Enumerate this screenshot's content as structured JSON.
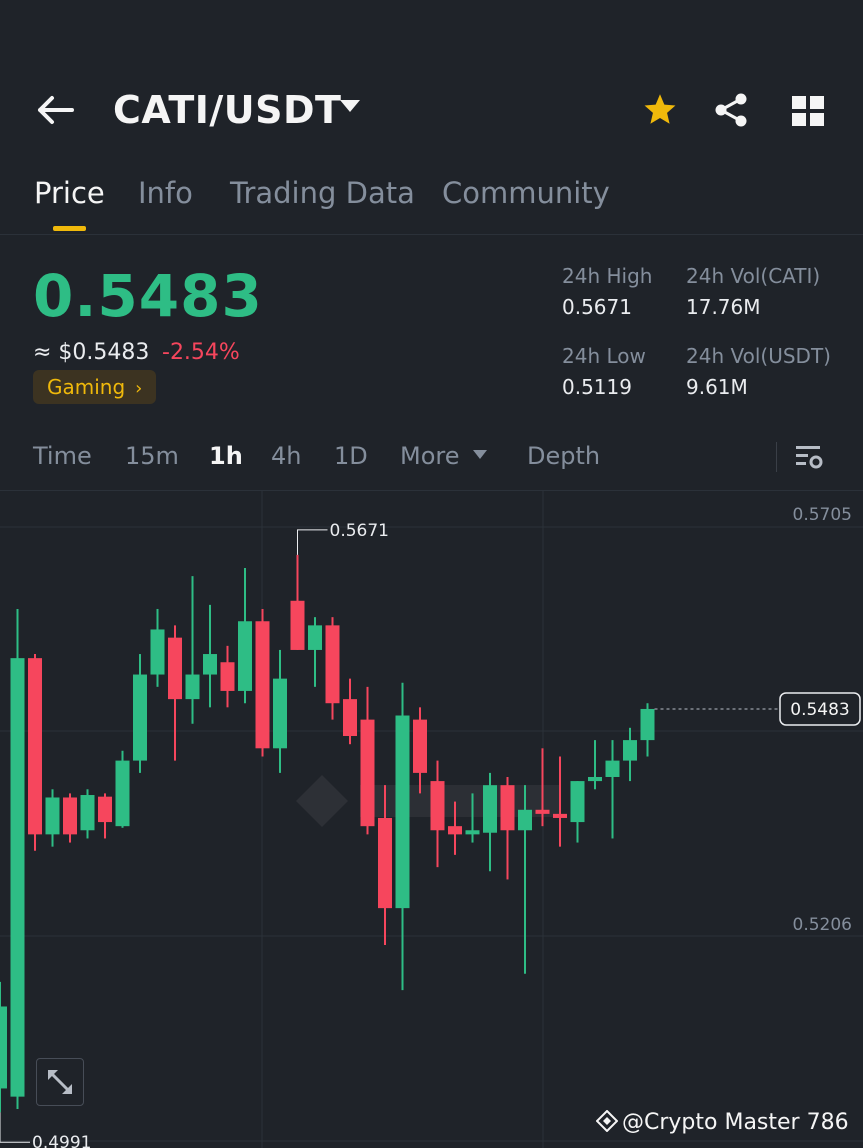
{
  "header": {
    "pair": "CATI/USDT"
  },
  "tabs": [
    "Price",
    "Info",
    "Trading Data",
    "Community"
  ],
  "ticker": {
    "last_price": "0.5483",
    "usd_price": "≈ $0.5483",
    "change": "-2.54%",
    "tag": "Gaming",
    "tag_chevron": "›",
    "high_label": "24h High",
    "high_value": "0.5671",
    "low_label": "24h Low",
    "low_value": "0.5119",
    "vol_base_label": "24h Vol(CATI)",
    "vol_base_value": "17.76M",
    "vol_quote_label": "24h Vol(USDT)",
    "vol_quote_value": "9.61M"
  },
  "intervals": {
    "time": "Time",
    "m15": "15m",
    "h1": "1h",
    "h4": "4h",
    "d1": "1D",
    "more": "More",
    "depth": "Depth"
  },
  "chart_data": {
    "type": "candlestick",
    "y_axis_ticks": [
      "0.5705",
      "0.5206"
    ],
    "last_price_label": "0.5483",
    "high_marker": "0.5671",
    "low_marker": "0.4991",
    "up_color": "#2ebd85",
    "down_color": "#f6465d",
    "candles": [
      {
        "o": 0.502,
        "h": 0.515,
        "l": 0.4991,
        "c": 0.512
      },
      {
        "o": 0.501,
        "h": 0.5605,
        "l": 0.4995,
        "c": 0.5545
      },
      {
        "o": 0.5545,
        "h": 0.555,
        "l": 0.531,
        "c": 0.533
      },
      {
        "o": 0.533,
        "h": 0.5385,
        "l": 0.5315,
        "c": 0.5375
      },
      {
        "o": 0.5375,
        "h": 0.538,
        "l": 0.532,
        "c": 0.533
      },
      {
        "o": 0.5335,
        "h": 0.5385,
        "l": 0.5325,
        "c": 0.5378
      },
      {
        "o": 0.5376,
        "h": 0.538,
        "l": 0.5325,
        "c": 0.5345
      },
      {
        "o": 0.534,
        "h": 0.5432,
        "l": 0.5338,
        "c": 0.542
      },
      {
        "o": 0.542,
        "h": 0.555,
        "l": 0.5405,
        "c": 0.5525
      },
      {
        "o": 0.5525,
        "h": 0.5605,
        "l": 0.551,
        "c": 0.558
      },
      {
        "o": 0.557,
        "h": 0.5585,
        "l": 0.542,
        "c": 0.5495
      },
      {
        "o": 0.5495,
        "h": 0.5645,
        "l": 0.5465,
        "c": 0.5525
      },
      {
        "o": 0.5525,
        "h": 0.561,
        "l": 0.5485,
        "c": 0.555
      },
      {
        "o": 0.554,
        "h": 0.556,
        "l": 0.5485,
        "c": 0.5505
      },
      {
        "o": 0.5505,
        "h": 0.5655,
        "l": 0.549,
        "c": 0.559
      },
      {
        "o": 0.559,
        "h": 0.5605,
        "l": 0.5425,
        "c": 0.5435
      },
      {
        "o": 0.5435,
        "h": 0.5555,
        "l": 0.5405,
        "c": 0.552
      },
      {
        "o": 0.5615,
        "h": 0.5671,
        "l": 0.5555,
        "c": 0.5555
      },
      {
        "o": 0.5555,
        "h": 0.5595,
        "l": 0.551,
        "c": 0.5585
      },
      {
        "o": 0.5585,
        "h": 0.5595,
        "l": 0.547,
        "c": 0.549
      },
      {
        "o": 0.5495,
        "h": 0.552,
        "l": 0.544,
        "c": 0.545
      },
      {
        "o": 0.547,
        "h": 0.551,
        "l": 0.533,
        "c": 0.534
      },
      {
        "o": 0.535,
        "h": 0.539,
        "l": 0.5195,
        "c": 0.524
      },
      {
        "o": 0.524,
        "h": 0.5515,
        "l": 0.514,
        "c": 0.5475
      },
      {
        "o": 0.547,
        "h": 0.5485,
        "l": 0.538,
        "c": 0.5405
      },
      {
        "o": 0.5395,
        "h": 0.542,
        "l": 0.529,
        "c": 0.5335
      },
      {
        "o": 0.534,
        "h": 0.537,
        "l": 0.5305,
        "c": 0.533
      },
      {
        "o": 0.533,
        "h": 0.538,
        "l": 0.532,
        "c": 0.5335
      },
      {
        "o": 0.5332,
        "h": 0.5405,
        "l": 0.5285,
        "c": 0.539
      },
      {
        "o": 0.539,
        "h": 0.54,
        "l": 0.5275,
        "c": 0.5335
      },
      {
        "o": 0.5335,
        "h": 0.539,
        "l": 0.516,
        "c": 0.536
      },
      {
        "o": 0.536,
        "h": 0.5435,
        "l": 0.534,
        "c": 0.5355
      },
      {
        "o": 0.5355,
        "h": 0.5425,
        "l": 0.5315,
        "c": 0.535
      },
      {
        "o": 0.5345,
        "h": 0.5395,
        "l": 0.532,
        "c": 0.5395
      },
      {
        "o": 0.5395,
        "h": 0.5445,
        "l": 0.5385,
        "c": 0.54
      },
      {
        "o": 0.54,
        "h": 0.5445,
        "l": 0.5325,
        "c": 0.542
      },
      {
        "o": 0.542,
        "h": 0.546,
        "l": 0.5395,
        "c": 0.5445
      },
      {
        "o": 0.5445,
        "h": 0.549,
        "l": 0.5425,
        "c": 0.5483
      }
    ]
  },
  "watermark": "@Crypto Master 786"
}
